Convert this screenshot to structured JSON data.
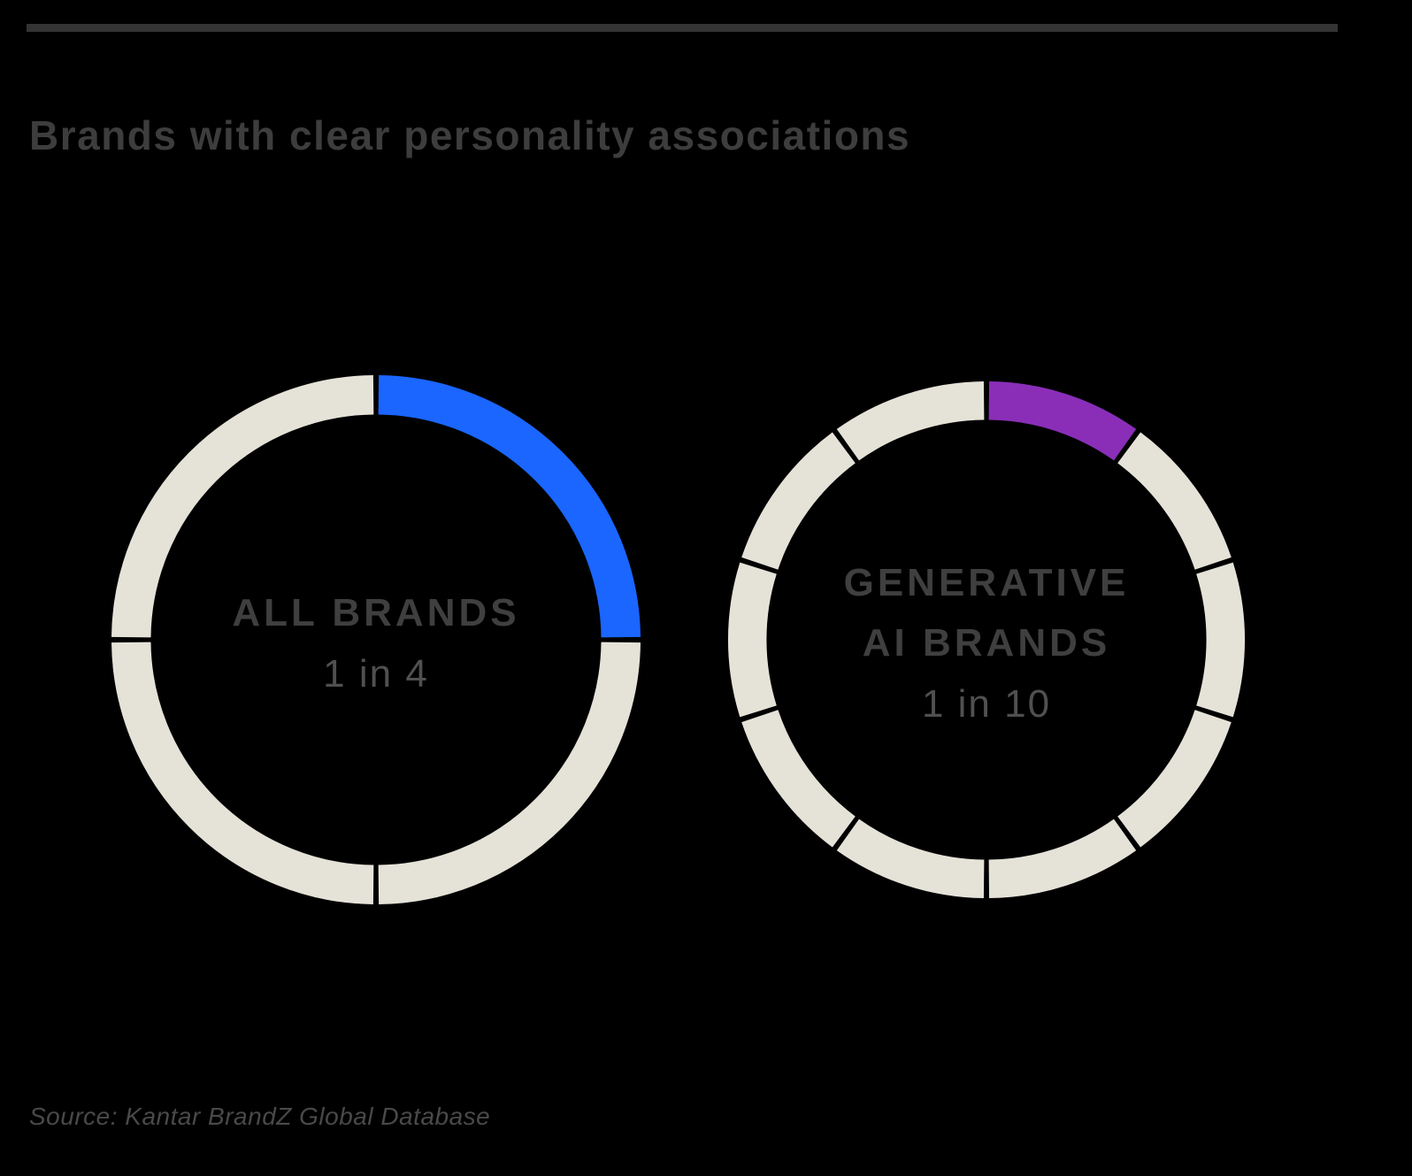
{
  "header": {
    "title": "Brands with clear personality associations"
  },
  "footer": {
    "source": "Source: Kantar BrandZ Global Database"
  },
  "colors": {
    "background": "#000000",
    "rule": "#333333",
    "title_text": "#3d3d3d",
    "label_text": "#3f3f3f",
    "value_text": "#505050",
    "source_text": "#494949"
  },
  "chart_data": [
    {
      "type": "pie",
      "subtype": "segmented-donut",
      "label_lines": [
        "ALL BRANDS"
      ],
      "value_label": "1 in 4",
      "fraction": 0.25,
      "segments_total": 4,
      "segments_highlighted": 1,
      "start_angle_deg": 0,
      "direction": "clockwise",
      "gap_degrees": 1.2,
      "highlight_color": "#1a66ff",
      "track_color": "#e5e2d8"
    },
    {
      "type": "pie",
      "subtype": "segmented-donut",
      "label_lines": [
        "GENERATIVE",
        "AI BRANDS"
      ],
      "value_label": "1 in 10",
      "fraction": 0.1,
      "segments_total": 10,
      "segments_highlighted": 1,
      "start_angle_deg": 0,
      "direction": "clockwise",
      "gap_degrees": 1.2,
      "highlight_color": "#8a2eb8",
      "track_color": "#e5e2d8"
    }
  ]
}
